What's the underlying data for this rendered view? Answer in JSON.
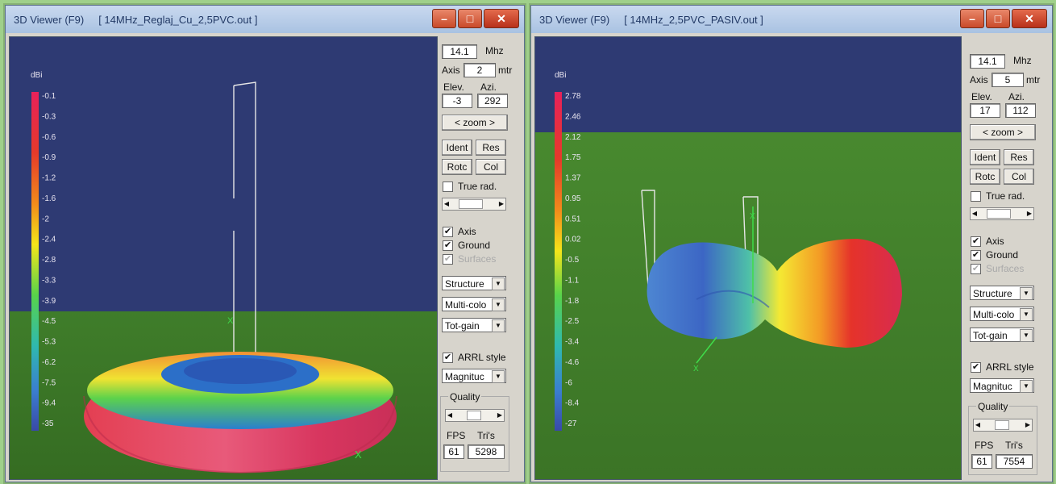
{
  "left": {
    "title_app": "3D Viewer (F9)",
    "title_file": "[ 14MHz_Reglaj_Cu_2,5PVC.out ]",
    "freq": "14.1",
    "freq_unit": "Mhz",
    "axis_label": "Axis",
    "axis": "2",
    "axis_unit": "mtr",
    "elev_label": "Elev.",
    "azi_label": "Azi.",
    "elev": "-3",
    "azi": "292",
    "zoom_label": "zoom",
    "ident": "Ident",
    "res": "Res",
    "rotc": "Rotc",
    "col": "Col",
    "true_rad": "True rad.",
    "axis_cb": "Axis",
    "ground_cb": "Ground",
    "surfaces_cb": "Surfaces",
    "sel1": "Structure",
    "sel2": "Multi-colo",
    "sel3": "Tot-gain",
    "arrl": "ARRL style",
    "sel4": "Magnituc",
    "quality": "Quality",
    "fps_label": "FPS",
    "tris_label": "Tri's",
    "fps": "61",
    "tris": "5298",
    "scale_unit": "dBi",
    "scale": [
      "-0.1",
      "-0.3",
      "-0.6",
      "-0.9",
      "-1.2",
      "-1.6",
      "-2",
      "-2.4",
      "-2.8",
      "-3.3",
      "-3.9",
      "-4.5",
      "-5.3",
      "-6.2",
      "-7.5",
      "-9.4",
      "-35"
    ]
  },
  "right": {
    "title_app": "3D Viewer (F9)",
    "title_file": "[ 14MHz_2,5PVC_PASIV.out ]",
    "freq": "14.1",
    "freq_unit": "Mhz",
    "axis_label": "Axis",
    "axis": "5",
    "axis_unit": "mtr",
    "elev_label": "Elev.",
    "azi_label": "Azi.",
    "elev": "17",
    "azi": "112",
    "zoom_label": "zoom",
    "ident": "Ident",
    "res": "Res",
    "rotc": "Rotc",
    "col": "Col",
    "true_rad": "True rad.",
    "axis_cb": "Axis",
    "ground_cb": "Ground",
    "surfaces_cb": "Surfaces",
    "sel1": "Structure",
    "sel2": "Multi-colo",
    "sel3": "Tot-gain",
    "arrl": "ARRL style",
    "sel4": "Magnituc",
    "quality": "Quality",
    "fps_label": "FPS",
    "tris_label": "Tri's",
    "fps": "61",
    "tris": "7554",
    "scale_unit": "dBi",
    "scale": [
      "2.78",
      "2.46",
      "2.12",
      "1.75",
      "1.37",
      "0.95",
      "0.51",
      "0.02",
      "-0.5",
      "-1.1",
      "-1.8",
      "-2.5",
      "-3.4",
      "-4.6",
      "-6",
      "-8.4",
      "-27"
    ]
  },
  "axis_marker": "X",
  "colors": {
    "sky": "#2e3a73",
    "ground": "#3f7d2a",
    "accent": "#e8214f"
  }
}
